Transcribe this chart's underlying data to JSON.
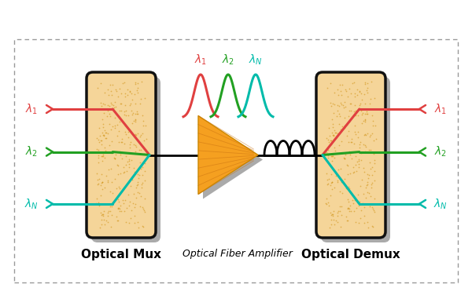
{
  "fig_width": 6.0,
  "fig_height": 3.9,
  "dpi": 100,
  "bg_color": "#ffffff",
  "box_fill": "#f5d599",
  "box_edge": "#111111",
  "shadow_color": "#aaaaaa",
  "colors": {
    "red": "#e04040",
    "green": "#22a022",
    "teal": "#00bbaa"
  },
  "amplifier_color": "#f5a020",
  "amplifier_edge": "#cc8800",
  "label_bottom_mux": "Optical Mux",
  "label_bottom_demux": "Optical Demux",
  "label_amplifier": "Optical Fiber Amplifier",
  "wavelength_labels": [
    "λ₁",
    "λ₂",
    "λ_N"
  ],
  "input_labels": [
    "λ₁",
    "λ₂",
    "λ_N"
  ],
  "output_labels": [
    "λ₁",
    "λ₂",
    "λ_N"
  ]
}
